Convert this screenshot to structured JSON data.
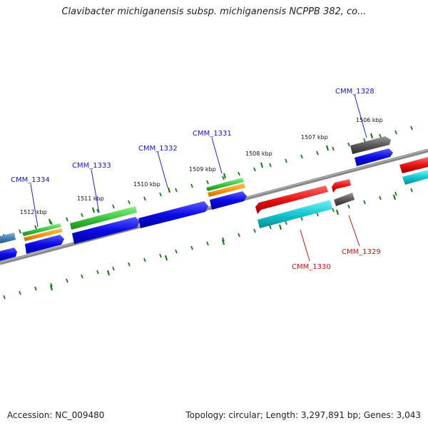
{
  "title": "Clavibacter michiganensis subsp. michiganensis NCPPB 382, co...",
  "footer": {
    "accession": "Accession: NC_009480",
    "topology": "Topology: circular; Length: 3,297,891 bp; Genes: 3,043"
  },
  "kbp_labels": [
    "1506 kbp",
    "1507 kbp",
    "1508 kbp",
    "1509 kbp",
    "1510 kbp",
    "1511 kbp",
    "1512 kbp"
  ],
  "gene_labels": {
    "top": [
      "CMM_1328",
      "CMM_1331",
      "CMM_1332",
      "CMM_1333",
      "CMM_1334"
    ],
    "bottom": [
      "CMM_1329",
      "CMM_1330"
    ]
  },
  "colors": {
    "blue": "#0a0ae6",
    "green": "#3cc83c",
    "orange": "#ff9a14",
    "red": "#e61414",
    "cyan": "#14c8d2",
    "gray": "#5a5a5a",
    "steel": "#4682b4",
    "tick": "#1e7a1e",
    "backbone": "#888888"
  }
}
